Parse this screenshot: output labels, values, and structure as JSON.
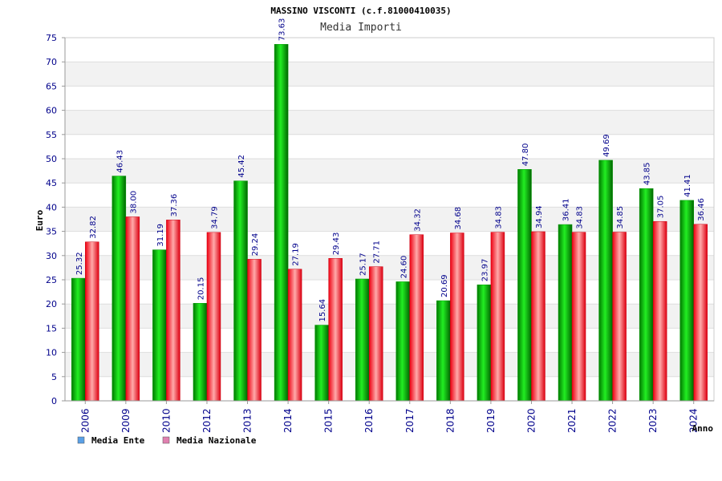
{
  "chart_data": {
    "type": "bar",
    "title": "MASSINO VISCONTI (c.f.81000410035)",
    "subtitle": "Media Importi",
    "ylabel": "Euro",
    "xlabel": "Anno",
    "ylim": [
      0,
      75
    ],
    "yticks": [
      0,
      5,
      10,
      15,
      20,
      25,
      30,
      35,
      40,
      45,
      50,
      55,
      60,
      65,
      70,
      75
    ],
    "categories": [
      "2006",
      "2009",
      "2010",
      "2012",
      "2013",
      "2014",
      "2015",
      "2016",
      "2017",
      "2018",
      "2019",
      "2020",
      "2021",
      "2022",
      "2023",
      "2024"
    ],
    "series": [
      {
        "name": "Media Ente",
        "color": "#00cc00",
        "legend_color": "#5aa0e6",
        "values": [
          25.32,
          46.43,
          31.19,
          20.15,
          45.42,
          73.63,
          15.64,
          25.17,
          24.6,
          20.69,
          23.97,
          47.8,
          36.41,
          49.69,
          43.85,
          41.41
        ],
        "labels": [
          "25.32",
          "46.43",
          "31.19",
          "20.15",
          "45.42",
          "73.63",
          "15.64",
          "25.17",
          "24.60",
          "20.69",
          "23.97",
          "47.80",
          "36.41",
          "49.69",
          "43.85",
          "41.41"
        ]
      },
      {
        "name": "Media Nazionale",
        "color": "#ee2233",
        "legend_color": "#e080b0",
        "values": [
          32.82,
          38.0,
          37.36,
          34.79,
          29.24,
          27.19,
          29.43,
          27.71,
          34.32,
          34.68,
          34.83,
          34.94,
          34.83,
          34.85,
          37.05,
          36.46
        ],
        "labels": [
          "32.82",
          "38.00",
          "37.36",
          "34.79",
          "29.24",
          "27.19",
          "29.43",
          "27.71",
          "34.32",
          "34.68",
          "34.83",
          "34.94",
          "34.83",
          "34.85",
          "37.05",
          "36.46"
        ]
      }
    ],
    "grid": true,
    "legend_position": "bottom-left"
  }
}
